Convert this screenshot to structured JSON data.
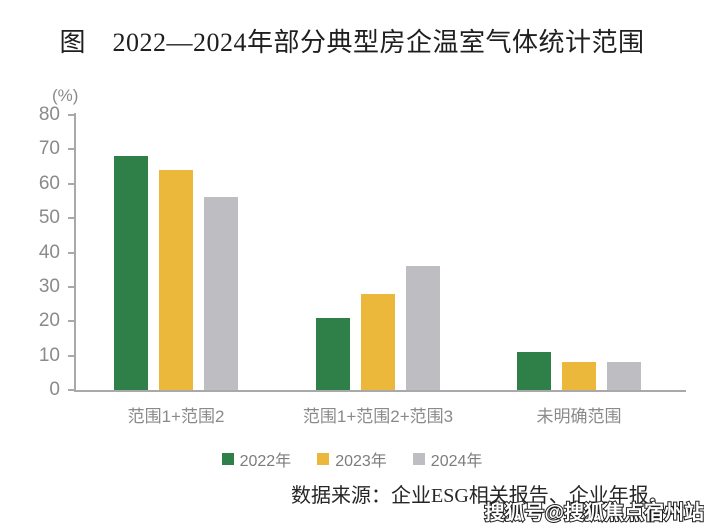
{
  "title": "图　2022—2024年部分典型房企温室气体统计范围",
  "chart_data": {
    "type": "bar",
    "title": "图　2022—2024年部分典型房企温室气体统计范围",
    "unit_label": "(%)",
    "categories": [
      "范围1+范围2",
      "范围1+范围2+范围3",
      "未明确范围"
    ],
    "series": [
      {
        "name": "2022年",
        "color": "#2F8048",
        "values": [
          68,
          21,
          11
        ]
      },
      {
        "name": "2023年",
        "color": "#ECB83B",
        "values": [
          64,
          28,
          8
        ]
      },
      {
        "name": "2024年",
        "color": "#BEBEC2",
        "values": [
          56,
          36,
          8
        ]
      }
    ],
    "ylim": [
      0,
      80
    ],
    "ytick_step": 10,
    "grid": false,
    "legend_position": "bottom"
  },
  "source_note": "数据来源：企业ESG相关报告、企业年报。",
  "watermark": "搜狐号@搜狐焦点宿州站",
  "colors": {
    "bar_2022": "#2F8048",
    "bar_2023": "#ECB83B",
    "bar_2024": "#BEBEC2",
    "axis": "#a9a9a9",
    "tick_text": "#8a8a8a",
    "legend_text": "#7d7d7d",
    "title_text": "#1f1f1f"
  }
}
